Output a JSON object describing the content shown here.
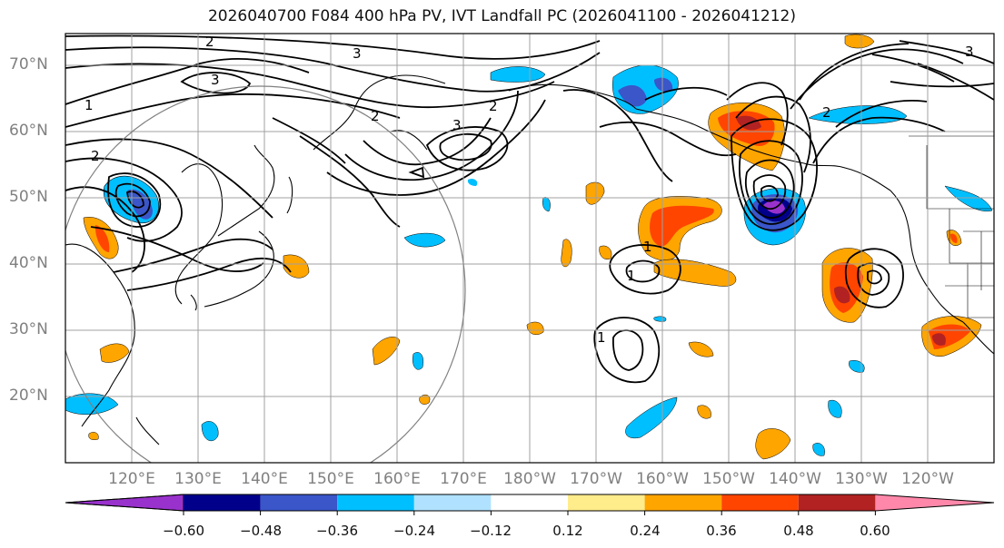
{
  "title": "2026040700 F084 400 hPa PV, IVT Landfall PC (2026041100 - 2026041212)",
  "lat_labels": [
    "70°N",
    "60°N",
    "50°N",
    "40°N",
    "30°N",
    "20°N"
  ],
  "lon_labels": [
    "120°E",
    "130°E",
    "140°E",
    "150°E",
    "160°E",
    "170°E",
    "180°W",
    "170°W",
    "160°W",
    "150°W",
    "140°W",
    "130°W",
    "120°W"
  ],
  "contour_labels": [
    "1",
    "2",
    "3",
    "2",
    "3",
    "2",
    "2",
    "3",
    "3",
    "2",
    "1",
    "1",
    "1"
  ],
  "colorbar": {
    "tick_labels": [
      "−0.60",
      "−0.48",
      "−0.36",
      "−0.24",
      "−0.12",
      "0.12",
      "0.24",
      "0.36",
      "0.48",
      "0.60"
    ],
    "colors": [
      "#9932cc",
      "#00008b",
      "#3a56c9",
      "#00bfff",
      "#b0e2ff",
      "#ffffff",
      "#ffec8b",
      "#ffa500",
      "#ff4500",
      "#b22222",
      "#ff88aa"
    ]
  }
}
